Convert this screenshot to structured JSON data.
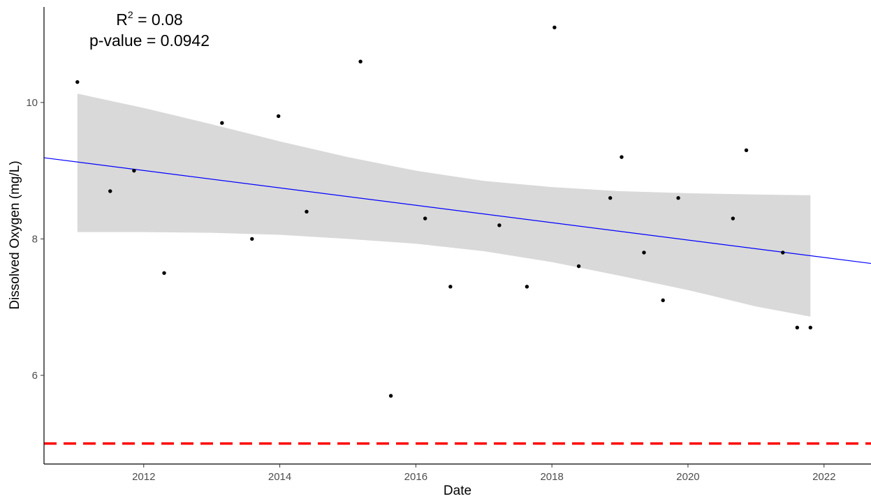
{
  "chart_data": {
    "type": "scatter",
    "xlabel": "Date",
    "ylabel": "Dissolved Oxygen (mg/L)",
    "x_ticks": [
      "2012",
      "2014",
      "2016",
      "2018",
      "2020",
      "2022"
    ],
    "y_ticks": [
      "6",
      "8",
      "10"
    ],
    "xlim": [
      "2010-07-15",
      "2022-09-10"
    ],
    "ylim": [
      4.7,
      11.4
    ],
    "grid": false,
    "annotation": {
      "r2_prefix": "R",
      "r2_sup": "2",
      "r2_suffix": " = 0.08",
      "p_value": "p-value = 0.0942"
    },
    "points": [
      {
        "x": "2011-01-10",
        "y": 10.3
      },
      {
        "x": "2011-07-05",
        "y": 8.7
      },
      {
        "x": "2011-11-10",
        "y": 9.0
      },
      {
        "x": "2012-04-20",
        "y": 7.5
      },
      {
        "x": "2013-02-25",
        "y": 9.7
      },
      {
        "x": "2013-08-05",
        "y": 8.0
      },
      {
        "x": "2013-12-25",
        "y": 9.8
      },
      {
        "x": "2014-05-25",
        "y": 8.4
      },
      {
        "x": "2015-03-10",
        "y": 10.6
      },
      {
        "x": "2015-08-20",
        "y": 5.7
      },
      {
        "x": "2016-02-20",
        "y": 8.3
      },
      {
        "x": "2016-07-05",
        "y": 7.3
      },
      {
        "x": "2017-03-25",
        "y": 8.2
      },
      {
        "x": "2017-08-20",
        "y": 7.3
      },
      {
        "x": "2018-01-15",
        "y": 11.1
      },
      {
        "x": "2018-05-25",
        "y": 7.6
      },
      {
        "x": "2018-11-10",
        "y": 8.6
      },
      {
        "x": "2019-01-10",
        "y": 9.2
      },
      {
        "x": "2019-05-10",
        "y": 7.8
      },
      {
        "x": "2019-08-20",
        "y": 7.1
      },
      {
        "x": "2019-11-10",
        "y": 8.6
      },
      {
        "x": "2020-08-30",
        "y": 8.3
      },
      {
        "x": "2020-11-10",
        "y": 9.3
      },
      {
        "x": "2021-05-25",
        "y": 7.8
      },
      {
        "x": "2021-08-10",
        "y": 6.7
      },
      {
        "x": "2021-10-20",
        "y": 6.7
      }
    ],
    "trend_line": {
      "color": "#0000ff",
      "x": [
        "2010-07-15",
        "2022-09-10"
      ],
      "y": [
        9.19,
        7.64
      ]
    },
    "confidence_band": {
      "color": "#d9d9d9",
      "x": [
        "2011-01-10",
        "2012-01-01",
        "2013-01-01",
        "2014-01-01",
        "2015-01-01",
        "2016-01-01",
        "2017-01-01",
        "2018-01-01",
        "2019-01-01",
        "2020-01-01",
        "2021-01-01",
        "2021-10-20"
      ],
      "upper": [
        10.13,
        9.92,
        9.68,
        9.43,
        9.2,
        9.0,
        8.85,
        8.76,
        8.7,
        8.67,
        8.65,
        8.64
      ],
      "lower": [
        8.1,
        8.1,
        8.09,
        8.06,
        8.0,
        7.93,
        7.82,
        7.66,
        7.46,
        7.25,
        7.01,
        6.86
      ]
    },
    "reference_line": {
      "y": 5.0,
      "color": "#ff0000",
      "style": "dashed"
    }
  }
}
